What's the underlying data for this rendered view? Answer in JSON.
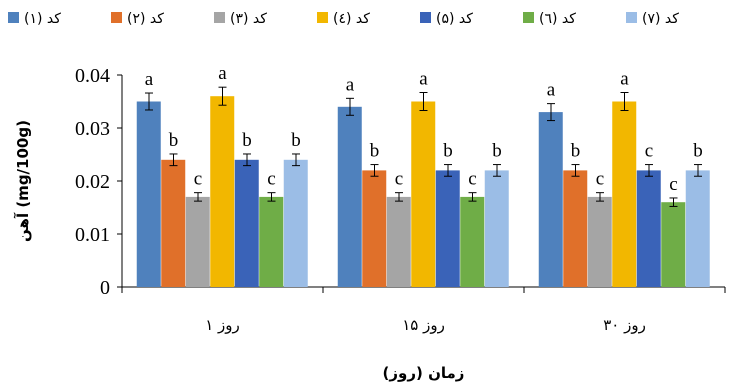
{
  "chart_data": {
    "type": "bar",
    "categories": [
      "روز ۱",
      "روز ۱۵",
      "روز ۳۰"
    ],
    "series": [
      {
        "name": "کد (۱)",
        "color": "#4F81BD",
        "values": [
          0.035,
          0.034,
          0.033
        ],
        "errors": [
          0.0016,
          0.0016,
          0.0016
        ],
        "labels": [
          "a",
          "a",
          "a"
        ]
      },
      {
        "name": "کد (۲)",
        "color": "#E0702A",
        "values": [
          0.024,
          0.022,
          0.022
        ],
        "errors": [
          0.0011,
          0.0011,
          0.0011
        ],
        "labels": [
          "b",
          "b",
          "b"
        ]
      },
      {
        "name": "کد (۳)",
        "color": "#A5A5A5",
        "values": [
          0.017,
          0.017,
          0.017
        ],
        "errors": [
          0.0008,
          0.0008,
          0.0008
        ],
        "labels": [
          "c",
          "c",
          "c"
        ]
      },
      {
        "name": "کد (٤)",
        "color": "#F2B700",
        "values": [
          0.036,
          0.035,
          0.035
        ],
        "errors": [
          0.0017,
          0.0017,
          0.0017
        ],
        "labels": [
          "a",
          "a",
          "a"
        ]
      },
      {
        "name": "کد (۵)",
        "color": "#3A63B8",
        "values": [
          0.024,
          0.022,
          0.022
        ],
        "errors": [
          0.0011,
          0.0011,
          0.0011
        ],
        "labels": [
          "b",
          "b",
          "c"
        ]
      },
      {
        "name": "کد (٦)",
        "color": "#6FAD47",
        "values": [
          0.017,
          0.017,
          0.016
        ],
        "errors": [
          0.0008,
          0.0008,
          0.0008
        ],
        "labels": [
          "c",
          "c",
          "c"
        ]
      },
      {
        "name": "کد (۷)",
        "color": "#9BBDE6",
        "values": [
          0.024,
          0.022,
          0.022
        ],
        "errors": [
          0.0011,
          0.0011,
          0.0011
        ],
        "labels": [
          "b",
          "b",
          "b"
        ]
      }
    ],
    "ylim": [
      0,
      0.04
    ],
    "yticks": [
      "0",
      "0.01",
      "0.02",
      "0.03",
      "0.04"
    ],
    "xlabel": "زمان (روز)",
    "ylabel": "آهن (mg/100g)",
    "legend_position": "top",
    "grid": false
  }
}
